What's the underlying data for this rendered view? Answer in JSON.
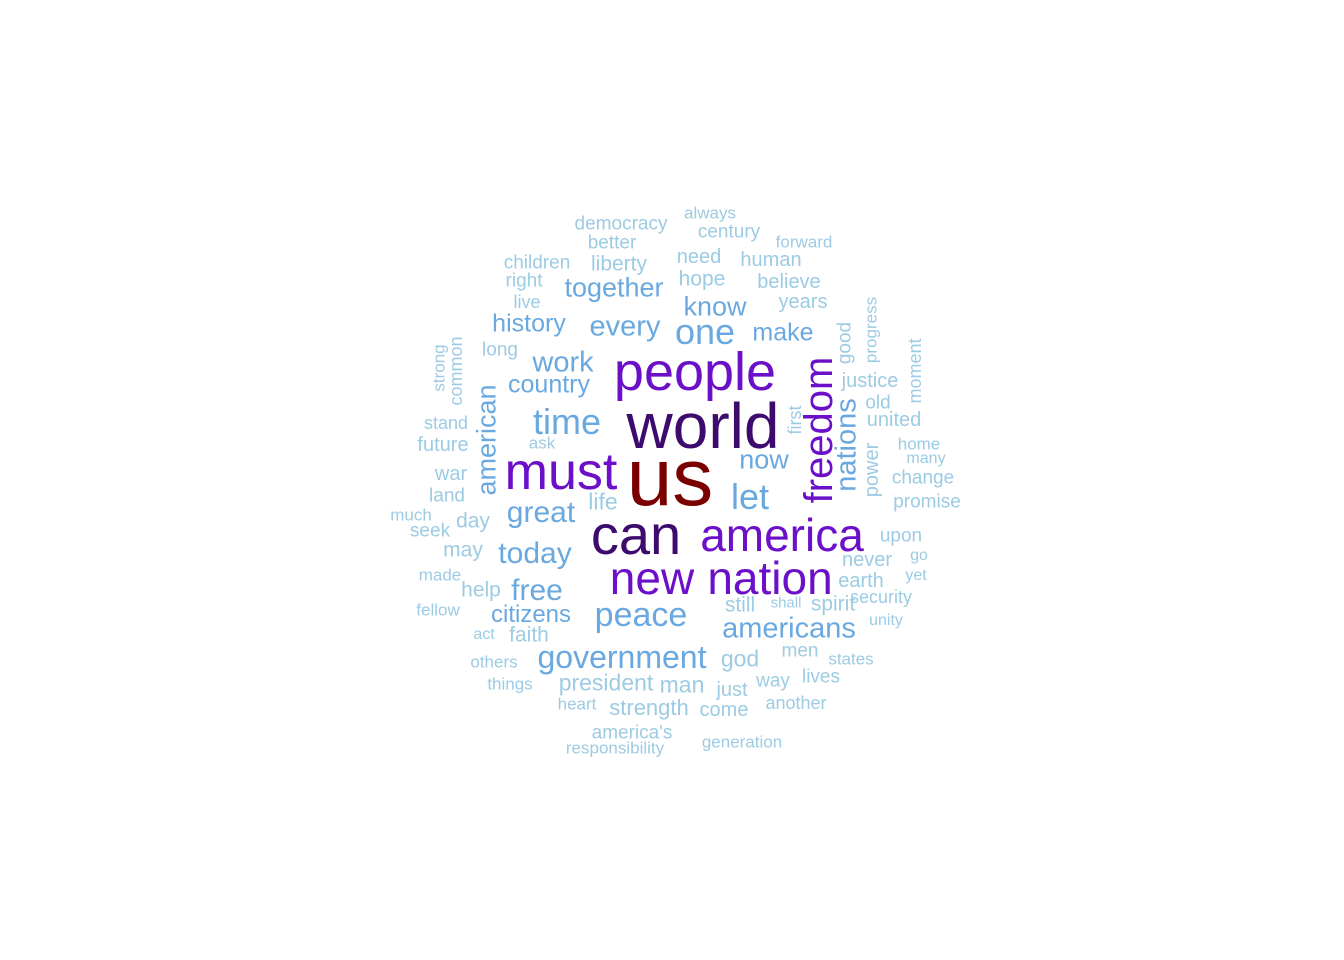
{
  "palette": {
    "tier1": "#7a0000",
    "tier2": "#3d0a6e",
    "tier3": "#6b0fc9",
    "tier4": "#6aa8e0",
    "tier5": "#9ccbe3"
  },
  "words": [
    {
      "text": "us",
      "tier": 1
    },
    {
      "text": "world",
      "tier": 2
    },
    {
      "text": "can",
      "tier": 2
    },
    {
      "text": "people",
      "tier": 3
    },
    {
      "text": "must",
      "tier": 3
    },
    {
      "text": "america",
      "tier": 3
    },
    {
      "text": "new",
      "tier": 3
    },
    {
      "text": "nation",
      "tier": 3
    },
    {
      "text": "freedom",
      "tier": 3
    },
    {
      "text": "one",
      "tier": 4
    },
    {
      "text": "time",
      "tier": 4
    },
    {
      "text": "let",
      "tier": 4
    },
    {
      "text": "peace",
      "tier": 4
    },
    {
      "text": "government",
      "tier": 4
    },
    {
      "text": "americans",
      "tier": 4
    },
    {
      "text": "nations",
      "tier": 4
    },
    {
      "text": "great",
      "tier": 4
    },
    {
      "text": "today",
      "tier": 4
    },
    {
      "text": "free",
      "tier": 4
    },
    {
      "text": "work",
      "tier": 4
    },
    {
      "text": "every",
      "tier": 4
    },
    {
      "text": "together",
      "tier": 4
    },
    {
      "text": "american",
      "tier": 4
    },
    {
      "text": "now",
      "tier": 4
    },
    {
      "text": "know",
      "tier": 4
    },
    {
      "text": "history",
      "tier": 4
    },
    {
      "text": "make",
      "tier": 4
    },
    {
      "text": "country",
      "tier": 4
    },
    {
      "text": "citizens",
      "tier": 4
    },
    {
      "text": "democracy",
      "tier": 5
    },
    {
      "text": "always",
      "tier": 5
    },
    {
      "text": "century",
      "tier": 5
    },
    {
      "text": "better",
      "tier": 5
    },
    {
      "text": "forward",
      "tier": 5
    },
    {
      "text": "children",
      "tier": 5
    },
    {
      "text": "liberty",
      "tier": 5
    },
    {
      "text": "need",
      "tier": 5
    },
    {
      "text": "human",
      "tier": 5
    },
    {
      "text": "right",
      "tier": 5
    },
    {
      "text": "hope",
      "tier": 5
    },
    {
      "text": "believe",
      "tier": 5
    },
    {
      "text": "live",
      "tier": 5
    },
    {
      "text": "years",
      "tier": 5
    },
    {
      "text": "progress",
      "tier": 5
    },
    {
      "text": "good",
      "tier": 5
    },
    {
      "text": "long",
      "tier": 5
    },
    {
      "text": "strong",
      "tier": 5
    },
    {
      "text": "common",
      "tier": 5
    },
    {
      "text": "moment",
      "tier": 5
    },
    {
      "text": "justice",
      "tier": 5
    },
    {
      "text": "old",
      "tier": 5
    },
    {
      "text": "first",
      "tier": 5
    },
    {
      "text": "stand",
      "tier": 5
    },
    {
      "text": "united",
      "tier": 5
    },
    {
      "text": "future",
      "tier": 5
    },
    {
      "text": "ask",
      "tier": 5
    },
    {
      "text": "home",
      "tier": 5
    },
    {
      "text": "many",
      "tier": 5
    },
    {
      "text": "power",
      "tier": 5
    },
    {
      "text": "war",
      "tier": 5
    },
    {
      "text": "change",
      "tier": 5
    },
    {
      "text": "land",
      "tier": 5
    },
    {
      "text": "life",
      "tier": 5
    },
    {
      "text": "promise",
      "tier": 5
    },
    {
      "text": "much",
      "tier": 5
    },
    {
      "text": "day",
      "tier": 5
    },
    {
      "text": "seek",
      "tier": 5
    },
    {
      "text": "upon",
      "tier": 5
    },
    {
      "text": "may",
      "tier": 5
    },
    {
      "text": "never",
      "tier": 5
    },
    {
      "text": "go",
      "tier": 5
    },
    {
      "text": "made",
      "tier": 5
    },
    {
      "text": "yet",
      "tier": 5
    },
    {
      "text": "earth",
      "tier": 5
    },
    {
      "text": "help",
      "tier": 5
    },
    {
      "text": "security",
      "tier": 5
    },
    {
      "text": "fellow",
      "tier": 5
    },
    {
      "text": "still",
      "tier": 5
    },
    {
      "text": "shall",
      "tier": 5
    },
    {
      "text": "spirit",
      "tier": 5
    },
    {
      "text": "faith",
      "tier": 5
    },
    {
      "text": "unity",
      "tier": 5
    },
    {
      "text": "act",
      "tier": 5
    },
    {
      "text": "god",
      "tier": 5
    },
    {
      "text": "men",
      "tier": 5
    },
    {
      "text": "states",
      "tier": 5
    },
    {
      "text": "others",
      "tier": 5
    },
    {
      "text": "president",
      "tier": 5
    },
    {
      "text": "man",
      "tier": 5
    },
    {
      "text": "way",
      "tier": 5
    },
    {
      "text": "lives",
      "tier": 5
    },
    {
      "text": "things",
      "tier": 5
    },
    {
      "text": "just",
      "tier": 5
    },
    {
      "text": "heart",
      "tier": 5
    },
    {
      "text": "strength",
      "tier": 5
    },
    {
      "text": "come",
      "tier": 5
    },
    {
      "text": "another",
      "tier": 5
    },
    {
      "text": "america's",
      "tier": 5
    },
    {
      "text": "responsibility",
      "tier": 5
    },
    {
      "text": "generation",
      "tier": 5
    }
  ]
}
